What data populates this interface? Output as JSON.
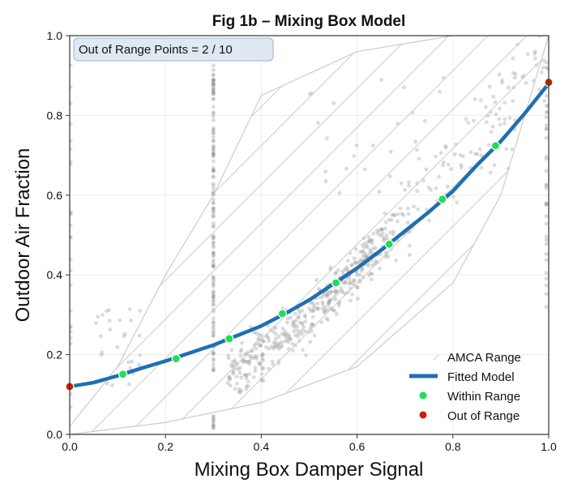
{
  "chart_data": {
    "type": "scatter",
    "title": "Fig 1b – Mixing Box Model",
    "xlabel": "Mixing Box Damper Signal",
    "ylabel": "Outdoor Air Fraction",
    "xlim": [
      0,
      1
    ],
    "ylim": [
      0,
      1
    ],
    "x_ticks": [
      "0.0",
      "0.2",
      "0.4",
      "0.6",
      "0.8",
      "1.0"
    ],
    "y_ticks": [
      "0.0",
      "0.2",
      "0.4",
      "0.6",
      "0.8",
      "1.0"
    ],
    "grid": true,
    "legend_position": "bottom-right",
    "annotation": "Out of Range Points = 2 / 10",
    "colors": {
      "fitted_model": "#1f6fb2",
      "within_range": "#22dd55",
      "out_of_range": "#cc2200",
      "amca_range": "#cccccc",
      "scatter": "#999999"
    },
    "series": [
      {
        "name": "AMCA Range",
        "kind": "band",
        "upper": [
          [
            0,
            0.02
          ],
          [
            0.1,
            0.17
          ],
          [
            0.2,
            0.4
          ],
          [
            0.3,
            0.6
          ],
          [
            0.4,
            0.85
          ],
          [
            0.6,
            0.96
          ],
          [
            0.8,
            1.0
          ],
          [
            1.0,
            1.0
          ]
        ],
        "lower": [
          [
            0,
            0.0
          ],
          [
            0.2,
            0.03
          ],
          [
            0.4,
            0.08
          ],
          [
            0.6,
            0.17
          ],
          [
            0.8,
            0.38
          ],
          [
            0.9,
            0.6
          ],
          [
            1.0,
            1.0
          ]
        ]
      },
      {
        "name": "Fitted Model",
        "kind": "line",
        "x": [
          0,
          0.05,
          0.1,
          0.15,
          0.2,
          0.25,
          0.3,
          0.35,
          0.4,
          0.45,
          0.5,
          0.55,
          0.6,
          0.65,
          0.7,
          0.75,
          0.8,
          0.85,
          0.9,
          0.95,
          1.0
        ],
        "y": [
          0.12,
          0.13,
          0.147,
          0.166,
          0.184,
          0.204,
          0.224,
          0.248,
          0.272,
          0.303,
          0.337,
          0.377,
          0.417,
          0.462,
          0.51,
          0.558,
          0.61,
          0.675,
          0.735,
          0.805,
          0.88
        ]
      },
      {
        "name": "Within Range",
        "kind": "points",
        "x": [
          0.111,
          0.222,
          0.333,
          0.444,
          0.556,
          0.667,
          0.778,
          0.889
        ],
        "y": [
          0.151,
          0.19,
          0.24,
          0.303,
          0.38,
          0.477,
          0.59,
          0.724
        ]
      },
      {
        "name": "Out of Range",
        "kind": "points",
        "x": [
          0.0,
          1.0
        ],
        "y": [
          0.12,
          0.883
        ]
      }
    ]
  }
}
